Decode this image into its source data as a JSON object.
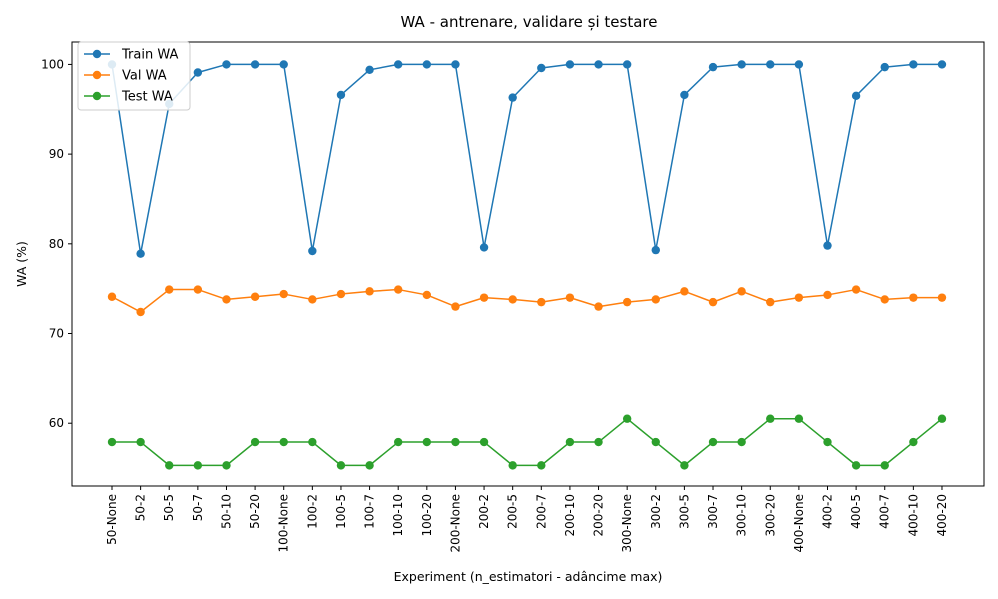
{
  "chart_data": {
    "type": "line",
    "title": "WA - antrenare, validare și testare",
    "xlabel": "Experiment (n_estimatori - adâncime max)",
    "ylabel": "WA (%)",
    "categories": [
      "50-None",
      "50-2",
      "50-5",
      "50-7",
      "50-10",
      "50-20",
      "100-None",
      "100-2",
      "100-5",
      "100-7",
      "100-10",
      "100-20",
      "200-None",
      "200-2",
      "200-5",
      "200-7",
      "200-10",
      "200-20",
      "300-None",
      "300-2",
      "300-5",
      "300-7",
      "300-10",
      "300-20",
      "400-None",
      "400-2",
      "400-5",
      "400-7",
      "400-10",
      "400-20"
    ],
    "ylim": [
      53.0,
      102.5
    ],
    "yticks": [
      60,
      70,
      80,
      90,
      100
    ],
    "grid": false,
    "legend_position": "top-left",
    "series": [
      {
        "name": "Train WA",
        "color": "#1f77b4",
        "values": [
          100.0,
          78.9,
          95.6,
          99.1,
          100.0,
          100.0,
          100.0,
          79.2,
          96.6,
          99.4,
          100.0,
          100.0,
          100.0,
          79.6,
          96.3,
          99.6,
          100.0,
          100.0,
          100.0,
          79.3,
          96.6,
          99.7,
          100.0,
          100.0,
          100.0,
          79.8,
          96.5,
          99.7,
          100.0,
          100.0
        ]
      },
      {
        "name": "Val WA",
        "color": "#ff7f0e",
        "values": [
          74.1,
          72.4,
          74.9,
          74.9,
          73.8,
          74.1,
          74.4,
          73.8,
          74.4,
          74.7,
          74.9,
          74.3,
          73.0,
          74.0,
          73.8,
          73.5,
          74.0,
          73.0,
          73.5,
          73.8,
          74.7,
          73.5,
          74.7,
          73.5,
          74.0,
          74.3,
          74.9,
          73.8,
          74.0,
          74.0
        ]
      },
      {
        "name": "Test WA",
        "color": "#2ca02c",
        "values": [
          57.9,
          57.9,
          55.3,
          55.3,
          55.3,
          57.9,
          57.9,
          57.9,
          55.3,
          55.3,
          57.9,
          57.9,
          57.9,
          57.9,
          55.3,
          55.3,
          57.9,
          57.9,
          60.5,
          57.9,
          55.3,
          57.9,
          57.9,
          60.5,
          60.5,
          57.9,
          55.3,
          55.3,
          57.9,
          60.5
        ]
      }
    ]
  }
}
